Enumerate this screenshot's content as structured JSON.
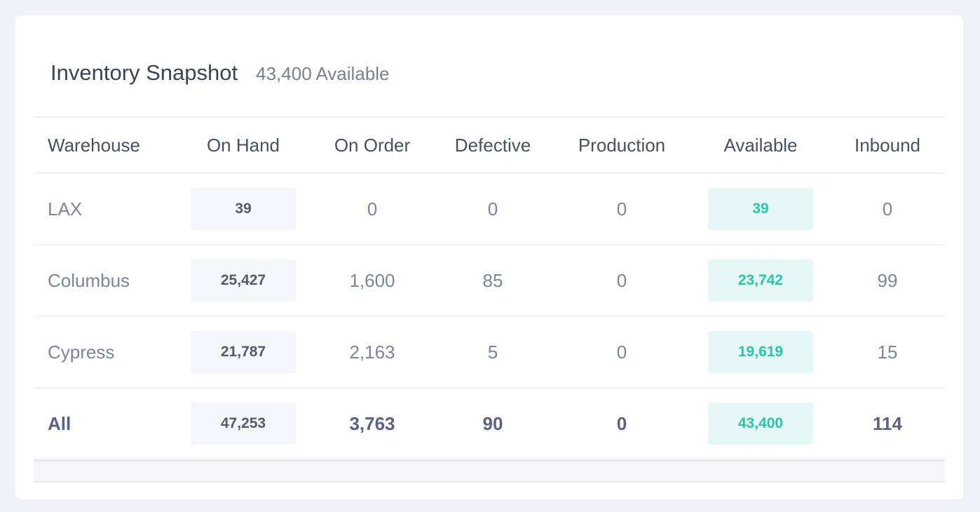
{
  "header": {
    "title": "Inventory Snapshot",
    "subtitle": "43,400 Available"
  },
  "table": {
    "columns": [
      "Warehouse",
      "On Hand",
      "On Order",
      "Defective",
      "Production",
      "Available",
      "Inbound"
    ],
    "rows": [
      {
        "warehouse": "LAX",
        "on_hand": "39",
        "on_order": "0",
        "defective": "0",
        "production": "0",
        "available": "39",
        "inbound": "0"
      },
      {
        "warehouse": "Columbus",
        "on_hand": "25,427",
        "on_order": "1,600",
        "defective": "85",
        "production": "0",
        "available": "23,742",
        "inbound": "99"
      },
      {
        "warehouse": "Cypress",
        "on_hand": "21,787",
        "on_order": "2,163",
        "defective": "5",
        "production": "0",
        "available": "19,619",
        "inbound": "15"
      }
    ],
    "total": {
      "warehouse": "All",
      "on_hand": "47,253",
      "on_order": "3,763",
      "defective": "90",
      "production": "0",
      "available": "43,400",
      "inbound": "114"
    }
  },
  "colors": {
    "available_accent": "#27c6a6",
    "available_background": "#e6f8f5",
    "on_hand_background": "#f5f6fa"
  }
}
